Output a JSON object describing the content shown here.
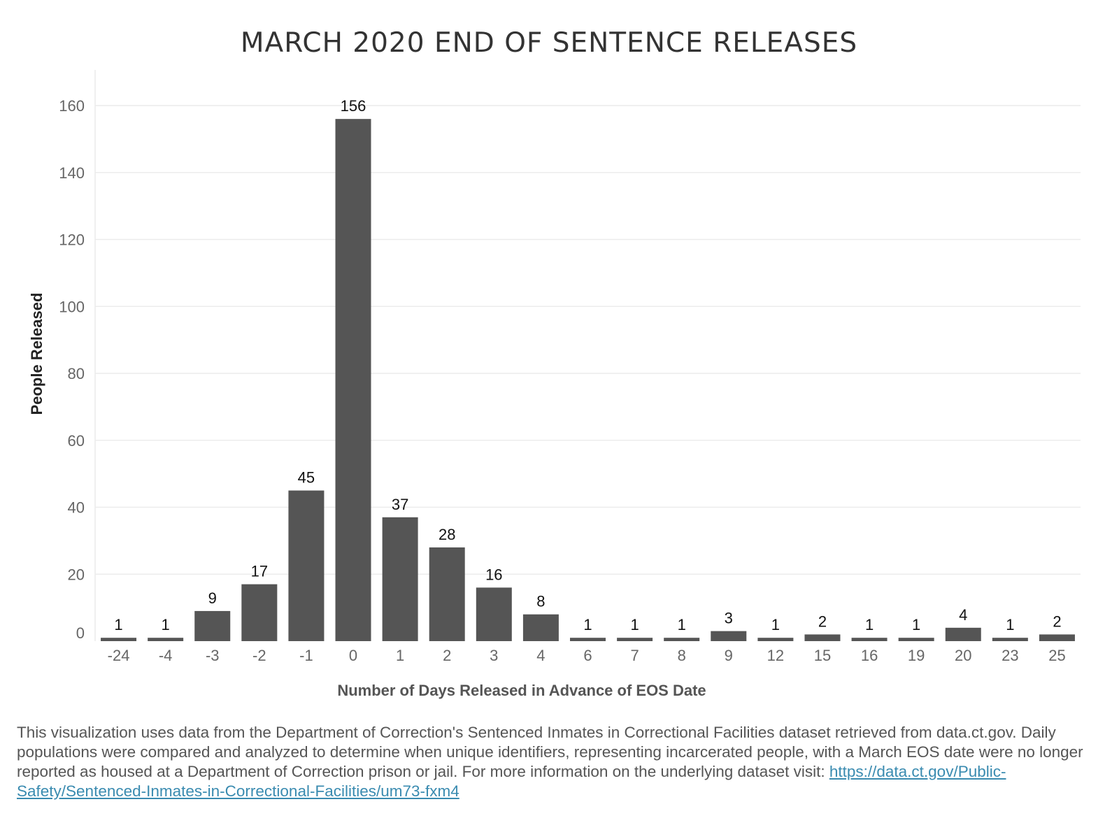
{
  "chart_data": {
    "type": "bar",
    "title": "MARCH 2020 END OF SENTENCE RELEASES",
    "xlabel": "Number of Days Released in Advance of EOS Date",
    "ylabel": "People Released",
    "categories": [
      "-24",
      "-4",
      "-3",
      "-2",
      "-1",
      "0",
      "1",
      "2",
      "3",
      "4",
      "6",
      "7",
      "8",
      "9",
      "12",
      "15",
      "16",
      "19",
      "20",
      "23",
      "25"
    ],
    "values": [
      1,
      1,
      9,
      17,
      45,
      156,
      37,
      28,
      16,
      8,
      1,
      1,
      1,
      3,
      1,
      2,
      1,
      1,
      4,
      1,
      2
    ],
    "y_ticks": [
      "0",
      "20",
      "40",
      "60",
      "80",
      "100",
      "120",
      "140",
      "160"
    ],
    "ylim": [
      0,
      165
    ],
    "grid": true,
    "colors": {
      "bar": "#555555",
      "grid": "#ececec",
      "title": "#333333"
    }
  },
  "footer": {
    "text": "This visualization uses data from the Department of Correction's Sentenced Inmates in Correctional Facilities dataset retrieved from data.ct.gov. Daily populations were compared and analyzed to determine when unique identifiers, representing incarcerated people, with a March EOS date were no longer reported as housed at a Department of Correction prison or jail. For more information on the underlying dataset visit: ",
    "link": "https://data.ct.gov/Public-Safety/Sentenced-Inmates-in-Correctional-Facilities/um73-fxm4"
  }
}
